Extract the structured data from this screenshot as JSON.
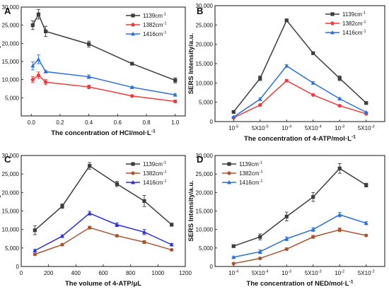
{
  "chart_data": [
    {
      "panel": "A",
      "type": "line",
      "xscale": "linear",
      "x": [
        0.01,
        0.05,
        0.1,
        0.4,
        0.7,
        1.0
      ],
      "xticks": [
        0.0,
        0.2,
        0.4,
        0.6,
        0.8,
        1.0
      ],
      "xticklabels": [
        "0.0",
        "0.2",
        "0.4",
        "0.6",
        "0.8",
        "1.0"
      ],
      "xlim": [
        -0.07,
        1.07
      ],
      "ylim": [
        0,
        30000
      ],
      "yticks": [
        5000,
        10000,
        15000,
        20000,
        25000,
        30000
      ],
      "yticklabels": [
        "5,000",
        "10,000",
        "15,000",
        "20,000",
        "25,000",
        "30,000"
      ],
      "xlabel": "The concentration of HCl/mol·L",
      "xlabel_sup": "-1",
      "ylabel": "SERS Intensity/a.u.",
      "legend_position": "top-right",
      "series": [
        {
          "name": "1139cm",
          "name_sup": "-1",
          "color": "#3c3c3c",
          "marker": "square",
          "values": [
            25000,
            28000,
            23300,
            19800,
            14400,
            9800
          ],
          "errors": [
            1200,
            1300,
            1400,
            800,
            200,
            700
          ]
        },
        {
          "name": "1382cm",
          "name_sup": "-1",
          "color": "#ee3a3a",
          "marker": "circle",
          "values": [
            10000,
            11200,
            9300,
            8000,
            5500,
            4000
          ],
          "errors": [
            800,
            900,
            700,
            500,
            200,
            400
          ]
        },
        {
          "name": "1416cm",
          "name_sup": "-1",
          "color": "#2a6fdb",
          "marker": "triangle",
          "values": [
            13800,
            15600,
            12200,
            10800,
            7900,
            5800
          ],
          "errors": [
            1100,
            1200,
            300,
            500,
            200,
            300
          ]
        }
      ]
    },
    {
      "panel": "B",
      "type": "line",
      "xscale": "category",
      "categories": [
        "10-5",
        "5X10-5",
        "10-4",
        "5X10-4",
        "10-3",
        "5X10-3"
      ],
      "xticklabels": [
        {
          "base": "10",
          "sup": "-5"
        },
        {
          "base": "5X10",
          "sup": "-5"
        },
        {
          "base": "10",
          "sup": "-4"
        },
        {
          "base": "5X10",
          "sup": "-4"
        },
        {
          "base": "10",
          "sup": "-3"
        },
        {
          "base": "5X10",
          "sup": "-3"
        }
      ],
      "ylim": [
        0,
        30000
      ],
      "yticks": [
        0,
        5000,
        10000,
        15000,
        20000,
        25000,
        30000
      ],
      "yticklabels": [
        "0",
        "5,000",
        "10,000",
        "15,000",
        "20,000",
        "25,000",
        "30,000"
      ],
      "xlabel": "The concentration of 4-ATP/mol·L",
      "xlabel_sup": "-1",
      "ylabel": "SERS Intensity/a.u.",
      "legend_position": "top-right",
      "series": [
        {
          "name": "1139cm",
          "name_sup": "-1",
          "color": "#3c3c3c",
          "marker": "square",
          "values": [
            2500,
            11200,
            26200,
            17700,
            11200,
            4800
          ],
          "errors": [
            200,
            600,
            300,
            300,
            600,
            200
          ]
        },
        {
          "name": "1382cm",
          "name_sup": "-1",
          "color": "#ee3a3a",
          "marker": "circle",
          "values": [
            1000,
            4300,
            10600,
            6900,
            4100,
            2000
          ],
          "errors": [
            100,
            200,
            300,
            200,
            200,
            100
          ]
        },
        {
          "name": "1416cm",
          "name_sup": "-1",
          "color": "#2a6fdb",
          "marker": "triangle",
          "values": [
            1200,
            5800,
            14400,
            10000,
            5900,
            2400
          ],
          "errors": [
            100,
            300,
            300,
            300,
            300,
            100
          ]
        }
      ]
    },
    {
      "panel": "C",
      "type": "line",
      "xscale": "linear",
      "x": [
        100,
        300,
        500,
        700,
        900,
        1100
      ],
      "xticks": [
        0,
        200,
        400,
        600,
        800,
        1000,
        1200
      ],
      "xticklabels": [
        "0",
        "200",
        "400",
        "600",
        "800",
        "1000",
        "1200"
      ],
      "xlim": [
        0,
        1200
      ],
      "ylim": [
        0,
        30000
      ],
      "yticks": [
        0,
        5000,
        10000,
        15000,
        20000,
        25000,
        30000
      ],
      "yticklabels": [
        "0",
        "5,000",
        "10,000",
        "15,000",
        "20,000",
        "25,000",
        "30,000"
      ],
      "xlabel": "The volume of 4-ATP/μL",
      "ylabel": "SERS Intensity/a.u.",
      "legend_position": "top-right",
      "series": [
        {
          "name": "1139cm",
          "name_sup": "-1",
          "color": "#3c3c3c",
          "marker": "square",
          "values": [
            9800,
            16300,
            27200,
            22300,
            17700,
            11300
          ],
          "errors": [
            1200,
            600,
            900,
            700,
            1500,
            400
          ]
        },
        {
          "name": "1382cm",
          "name_sup": "-1",
          "color": "#a8542f",
          "marker": "circle",
          "values": [
            3300,
            5900,
            10500,
            8300,
            6600,
            4500
          ],
          "errors": [
            300,
            300,
            400,
            300,
            400,
            200
          ]
        },
        {
          "name": "1416cm",
          "name_sup": "-1",
          "color": "#2a2fdb",
          "marker": "triangle",
          "values": [
            4300,
            8200,
            14400,
            11300,
            9300,
            5900
          ],
          "errors": [
            300,
            300,
            500,
            500,
            700,
            300
          ]
        }
      ]
    },
    {
      "panel": "D",
      "type": "line",
      "xscale": "category",
      "categories": [
        "10-4",
        "5X10-4",
        "10-3",
        "5X10-3",
        "10-2",
        "5X10-2"
      ],
      "xticklabels": [
        {
          "base": "10",
          "sup": "-4"
        },
        {
          "base": "5X10",
          "sup": "-4"
        },
        {
          "base": "10",
          "sup": "-3"
        },
        {
          "base": "5X10",
          "sup": "-3"
        },
        {
          "base": "10",
          "sup": "-2"
        },
        {
          "base": "5X10",
          "sup": "-2"
        }
      ],
      "ylim": [
        0,
        30000
      ],
      "yticks": [
        0,
        5000,
        10000,
        15000,
        20000,
        25000,
        30000
      ],
      "yticklabels": [
        "0",
        "5,000",
        "10,000",
        "15,000",
        "20,000",
        "25,000",
        "30,000"
      ],
      "xlabel": "The concentration of NED/mol·L",
      "xlabel_sup": "-1",
      "ylabel": "SERS Intensity/a.u.",
      "legend_position": "top-left",
      "series": [
        {
          "name": "1139cm",
          "name_sup": "-1",
          "color": "#3c3c3c",
          "marker": "square",
          "values": [
            5500,
            8000,
            13500,
            18800,
            26500,
            22000
          ],
          "errors": [
            300,
            800,
            1200,
            1200,
            1300,
            500
          ]
        },
        {
          "name": "1382cm",
          "name_sup": "-1",
          "color": "#a8542f",
          "marker": "circle",
          "values": [
            800,
            2200,
            4700,
            8000,
            9900,
            8400
          ],
          "errors": [
            100,
            200,
            300,
            400,
            500,
            200
          ]
        },
        {
          "name": "1416cm",
          "name_sup": "-1",
          "color": "#2a6fdb",
          "marker": "triangle",
          "values": [
            2500,
            4000,
            7500,
            10000,
            14000,
            11700
          ],
          "errors": [
            200,
            500,
            500,
            500,
            600,
            400
          ]
        }
      ]
    }
  ]
}
